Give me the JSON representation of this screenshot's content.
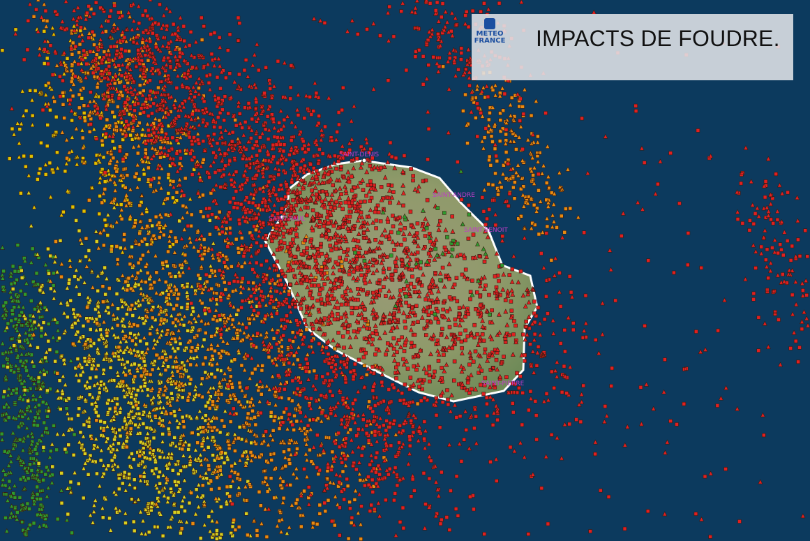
{
  "header": {
    "logo": "METEO FRANCE",
    "title": "IMPACTS DE FOUDRE."
  },
  "places": [
    "SAINT-DENIS",
    "SAINT-ANDRE",
    "SAINT-BENOIT",
    "SAINT-PAUL",
    "SAINT-PIERRE"
  ]
}
